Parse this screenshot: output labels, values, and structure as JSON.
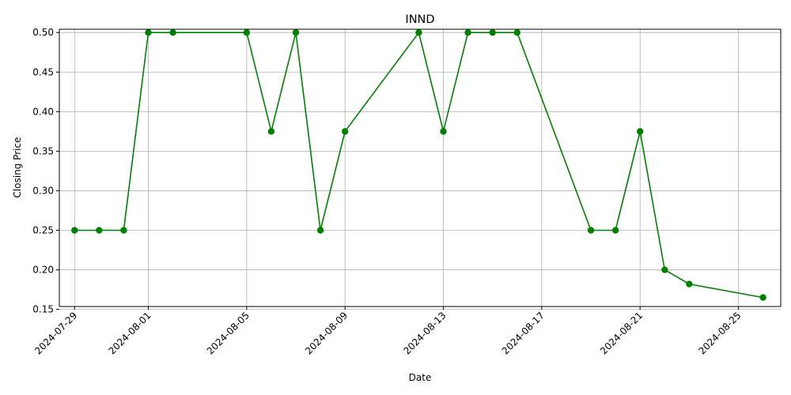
{
  "chart_data": {
    "type": "line",
    "title": "INND",
    "xlabel": "Date",
    "ylabel": "Closing Price",
    "grid": true,
    "line_color": "#008000",
    "marker": "circle",
    "xlim": [
      "2024-07-28",
      "2024-08-27"
    ],
    "ylim": [
      0.15,
      0.51
    ],
    "x_ticks": [
      "2024-07-29",
      "2024-08-01",
      "2024-08-05",
      "2024-08-09",
      "2024-08-13",
      "2024-08-17",
      "2024-08-21",
      "2024-08-25"
    ],
    "y_ticks": [
      "0.15",
      "0.20",
      "0.25",
      "0.30",
      "0.35",
      "0.40",
      "0.45",
      "0.50"
    ],
    "series": [
      {
        "x": [
          "2024-07-29",
          "2024-07-30",
          "2024-07-31",
          "2024-08-01",
          "2024-08-02",
          "2024-08-05",
          "2024-08-06",
          "2024-08-07",
          "2024-08-08",
          "2024-08-09",
          "2024-08-12",
          "2024-08-13",
          "2024-08-14",
          "2024-08-15",
          "2024-08-16",
          "2024-08-19",
          "2024-08-20",
          "2024-08-21",
          "2024-08-22",
          "2024-08-23",
          "2024-08-26"
        ],
        "values": [
          0.25,
          0.25,
          0.25,
          0.5,
          0.5,
          0.5,
          0.375,
          0.5,
          0.25,
          0.375,
          0.5,
          0.375,
          0.5,
          0.5,
          0.5,
          0.25,
          0.25,
          0.375,
          0.2,
          0.182,
          0.165
        ]
      }
    ]
  }
}
